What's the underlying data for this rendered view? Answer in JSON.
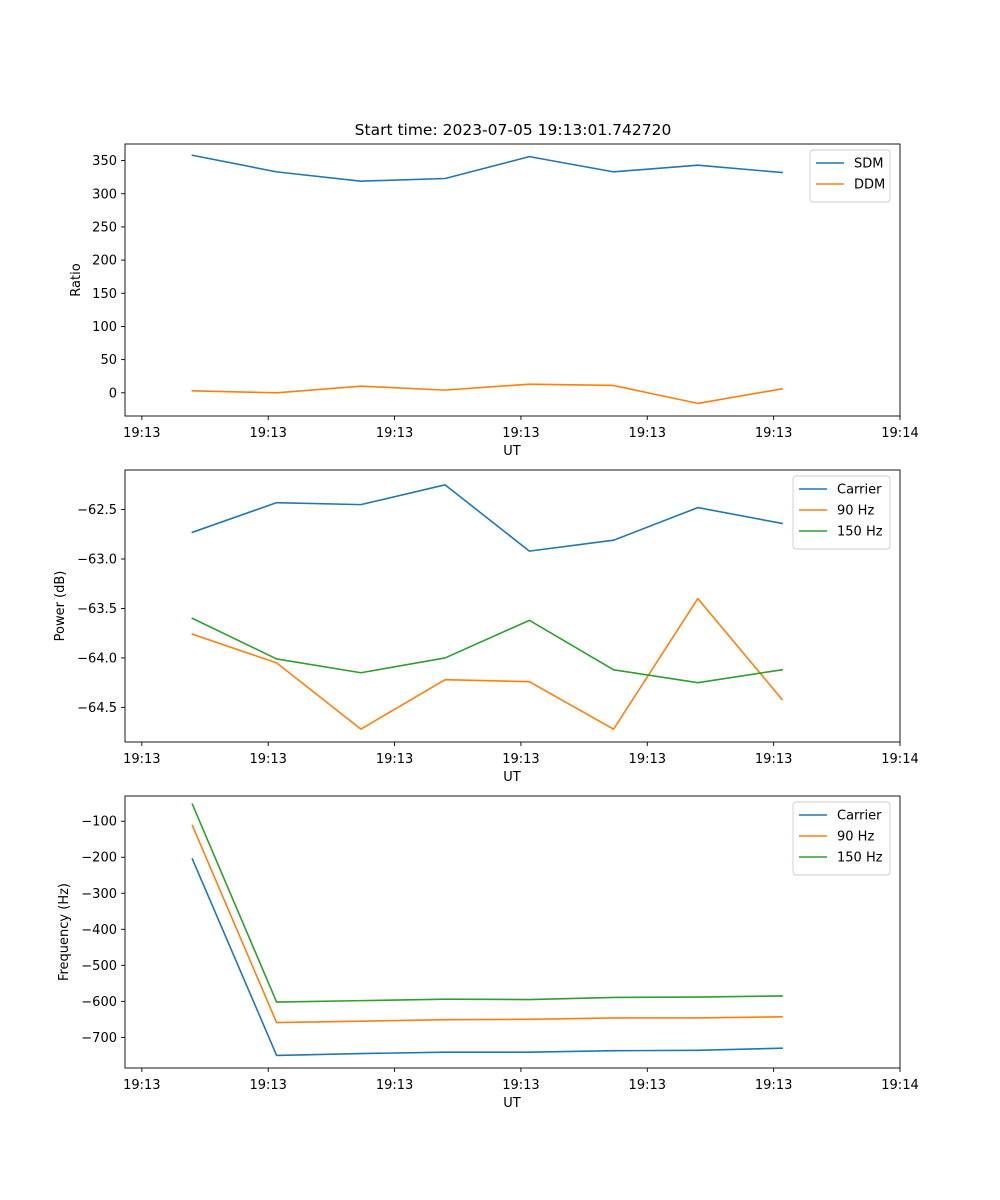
{
  "figure": {
    "title": "Start time: 2023-07-05 19:13:01.742720"
  },
  "chart_data": [
    {
      "type": "line",
      "title": "Start time: 2023-07-05 19:13:01.742720",
      "xlabel": "UT",
      "ylabel": "Ratio",
      "x": [
        1,
        2,
        3,
        4,
        5,
        6,
        7,
        8
      ],
      "xlim": [
        0.2,
        9.4
      ],
      "ylim": [
        -35,
        375
      ],
      "xticks": [
        0.4,
        1.9,
        3.4,
        4.9,
        6.4,
        7.9,
        9.4
      ],
      "xticklabels": [
        "19:13",
        "19:13",
        "19:13",
        "19:13",
        "19:13",
        "19:13",
        "19:14"
      ],
      "yticks": [
        0,
        50,
        100,
        150,
        200,
        250,
        300,
        350
      ],
      "yticklabels": [
        "0",
        "50",
        "100",
        "150",
        "200",
        "250",
        "300",
        "350"
      ],
      "legend": "top-right",
      "series": [
        {
          "name": "SDM",
          "color": "#1f77b4",
          "values": [
            358,
            333,
            319,
            323,
            356,
            333,
            343,
            332
          ]
        },
        {
          "name": "DDM",
          "color": "#ff7f0e",
          "values": [
            3,
            0,
            10,
            4,
            13,
            11,
            -16,
            6
          ]
        }
      ]
    },
    {
      "type": "line",
      "title": "",
      "xlabel": "UT",
      "ylabel": "Power (dB)",
      "x": [
        1,
        2,
        3,
        4,
        5,
        6,
        7,
        8
      ],
      "xlim": [
        0.2,
        9.4
      ],
      "ylim": [
        -64.85,
        -62.1
      ],
      "xticks": [
        0.4,
        1.9,
        3.4,
        4.9,
        6.4,
        7.9,
        9.4
      ],
      "xticklabels": [
        "19:13",
        "19:13",
        "19:13",
        "19:13",
        "19:13",
        "19:13",
        "19:14"
      ],
      "yticks": [
        -64.5,
        -64.0,
        -63.5,
        -63.0,
        -62.5
      ],
      "yticklabels": [
        "−64.5",
        "−64.0",
        "−63.5",
        "−63.0",
        "−62.5"
      ],
      "legend": "top-right",
      "series": [
        {
          "name": "Carrier",
          "color": "#1f77b4",
          "values": [
            -62.73,
            -62.43,
            -62.45,
            -62.25,
            -62.92,
            -62.81,
            -62.48,
            -62.64
          ]
        },
        {
          "name": "90 Hz",
          "color": "#ff7f0e",
          "values": [
            -63.76,
            -64.05,
            -64.72,
            -64.22,
            -64.24,
            -64.72,
            -63.4,
            -64.42
          ]
        },
        {
          "name": "150 Hz",
          "color": "#2ca02c",
          "values": [
            -63.6,
            -64.01,
            -64.15,
            -64.0,
            -63.62,
            -64.12,
            -64.25,
            -64.12
          ]
        }
      ]
    },
    {
      "type": "line",
      "title": "",
      "xlabel": "UT",
      "ylabel": "Frequency (Hz)",
      "x": [
        1,
        2,
        3,
        4,
        5,
        6,
        7,
        8
      ],
      "xlim": [
        0.2,
        9.4
      ],
      "ylim": [
        -785,
        -30
      ],
      "xticks": [
        0.4,
        1.9,
        3.4,
        4.9,
        6.4,
        7.9,
        9.4
      ],
      "xticklabels": [
        "19:13",
        "19:13",
        "19:13",
        "19:13",
        "19:13",
        "19:13",
        "19:14"
      ],
      "yticks": [
        -700,
        -600,
        -500,
        -400,
        -300,
        -200,
        -100
      ],
      "yticklabels": [
        "−700",
        "−600",
        "−500",
        "−400",
        "−300",
        "−200",
        "−100"
      ],
      "legend": "top-right",
      "series": [
        {
          "name": "Carrier",
          "color": "#1f77b4",
          "values": [
            -205,
            -750,
            -745,
            -741,
            -741,
            -737,
            -736,
            -730
          ]
        },
        {
          "name": "90 Hz",
          "color": "#ff7f0e",
          "values": [
            -112,
            -659,
            -655,
            -651,
            -650,
            -646,
            -646,
            -643
          ]
        },
        {
          "name": "150 Hz",
          "color": "#2ca02c",
          "values": [
            -53,
            -602,
            -598,
            -594,
            -595,
            -589,
            -588,
            -585
          ]
        }
      ]
    }
  ]
}
